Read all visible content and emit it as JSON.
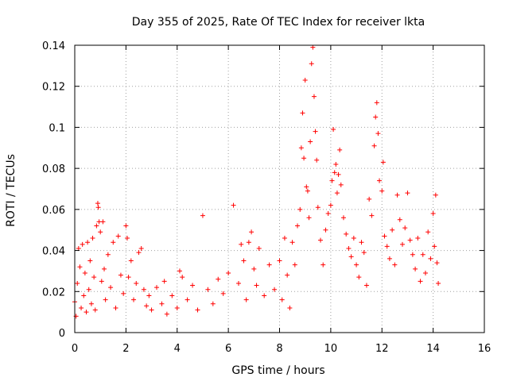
{
  "chart_data": {
    "type": "scatter",
    "title": "Day 355 of 2025, Rate Of TEC Index for receiver lkta",
    "xlabel": "GPS time / hours",
    "ylabel": "ROTI / TECUs",
    "xlim": [
      0,
      16
    ],
    "ylim": [
      0,
      0.14
    ],
    "xticks": [
      0,
      2,
      4,
      6,
      8,
      10,
      12,
      14,
      16
    ],
    "yticks": [
      0,
      0.02,
      0.04,
      0.06,
      0.08,
      0.1,
      0.12,
      0.14
    ],
    "ytick_labels": [
      "0",
      "0.02",
      "0.04",
      "0.06",
      "0.08",
      "0.1",
      "0.12",
      "0.14"
    ],
    "grid": true,
    "marker": "+",
    "marker_color": "#ff0000",
    "series": [
      {
        "name": "ROTI",
        "points": [
          [
            0.0,
            0.015
          ],
          [
            0.05,
            0.008
          ],
          [
            0.1,
            0.024
          ],
          [
            0.15,
            0.041
          ],
          [
            0.2,
            0.032
          ],
          [
            0.25,
            0.012
          ],
          [
            0.3,
            0.043
          ],
          [
            0.35,
            0.018
          ],
          [
            0.4,
            0.029
          ],
          [
            0.45,
            0.01
          ],
          [
            0.5,
            0.044
          ],
          [
            0.55,
            0.021
          ],
          [
            0.6,
            0.035
          ],
          [
            0.65,
            0.014
          ],
          [
            0.7,
            0.046
          ],
          [
            0.75,
            0.027
          ],
          [
            0.8,
            0.011
          ],
          [
            0.85,
            0.052
          ],
          [
            0.9,
            0.063
          ],
          [
            0.92,
            0.061
          ],
          [
            0.95,
            0.054
          ],
          [
            1.0,
            0.049
          ],
          [
            1.05,
            0.025
          ],
          [
            1.1,
            0.054
          ],
          [
            1.15,
            0.031
          ],
          [
            1.2,
            0.016
          ],
          [
            1.3,
            0.038
          ],
          [
            1.4,
            0.022
          ],
          [
            1.5,
            0.044
          ],
          [
            1.6,
            0.012
          ],
          [
            1.7,
            0.047
          ],
          [
            1.8,
            0.028
          ],
          [
            1.9,
            0.019
          ],
          [
            2.0,
            0.052
          ],
          [
            2.05,
            0.046
          ],
          [
            2.1,
            0.027
          ],
          [
            2.2,
            0.035
          ],
          [
            2.3,
            0.016
          ],
          [
            2.4,
            0.024
          ],
          [
            2.5,
            0.039
          ],
          [
            2.6,
            0.041
          ],
          [
            2.7,
            0.021
          ],
          [
            2.8,
            0.013
          ],
          [
            2.9,
            0.018
          ],
          [
            3.0,
            0.011
          ],
          [
            3.2,
            0.022
          ],
          [
            3.4,
            0.014
          ],
          [
            3.5,
            0.025
          ],
          [
            3.6,
            0.009
          ],
          [
            3.8,
            0.018
          ],
          [
            4.0,
            0.012
          ],
          [
            4.1,
            0.03
          ],
          [
            4.2,
            0.027
          ],
          [
            4.4,
            0.016
          ],
          [
            4.6,
            0.023
          ],
          [
            4.8,
            0.011
          ],
          [
            5.0,
            0.057
          ],
          [
            5.2,
            0.021
          ],
          [
            5.4,
            0.014
          ],
          [
            5.6,
            0.026
          ],
          [
            5.8,
            0.019
          ],
          [
            6.0,
            0.029
          ],
          [
            6.2,
            0.062
          ],
          [
            6.4,
            0.024
          ],
          [
            6.5,
            0.043
          ],
          [
            6.6,
            0.035
          ],
          [
            6.7,
            0.016
          ],
          [
            6.8,
            0.044
          ],
          [
            6.9,
            0.049
          ],
          [
            7.0,
            0.031
          ],
          [
            7.1,
            0.023
          ],
          [
            7.2,
            0.041
          ],
          [
            7.4,
            0.018
          ],
          [
            7.6,
            0.033
          ],
          [
            7.8,
            0.021
          ],
          [
            8.0,
            0.035
          ],
          [
            8.1,
            0.016
          ],
          [
            8.2,
            0.046
          ],
          [
            8.3,
            0.028
          ],
          [
            8.4,
            0.012
          ],
          [
            8.5,
            0.044
          ],
          [
            8.6,
            0.033
          ],
          [
            8.7,
            0.052
          ],
          [
            8.8,
            0.06
          ],
          [
            8.85,
            0.09
          ],
          [
            8.9,
            0.107
          ],
          [
            8.95,
            0.085
          ],
          [
            9.0,
            0.123
          ],
          [
            9.05,
            0.071
          ],
          [
            9.1,
            0.069
          ],
          [
            9.15,
            0.056
          ],
          [
            9.2,
            0.093
          ],
          [
            9.25,
            0.131
          ],
          [
            9.3,
            0.139
          ],
          [
            9.35,
            0.115
          ],
          [
            9.4,
            0.098
          ],
          [
            9.45,
            0.084
          ],
          [
            9.5,
            0.061
          ],
          [
            9.6,
            0.045
          ],
          [
            9.7,
            0.033
          ],
          [
            9.8,
            0.05
          ],
          [
            9.9,
            0.058
          ],
          [
            10.0,
            0.062
          ],
          [
            10.05,
            0.074
          ],
          [
            10.1,
            0.099
          ],
          [
            10.15,
            0.078
          ],
          [
            10.2,
            0.082
          ],
          [
            10.25,
            0.068
          ],
          [
            10.3,
            0.077
          ],
          [
            10.35,
            0.089
          ],
          [
            10.4,
            0.072
          ],
          [
            10.5,
            0.056
          ],
          [
            10.6,
            0.048
          ],
          [
            10.7,
            0.041
          ],
          [
            10.8,
            0.037
          ],
          [
            10.9,
            0.046
          ],
          [
            11.0,
            0.033
          ],
          [
            11.1,
            0.027
          ],
          [
            11.2,
            0.044
          ],
          [
            11.3,
            0.039
          ],
          [
            11.4,
            0.023
          ],
          [
            11.5,
            0.065
          ],
          [
            11.6,
            0.057
          ],
          [
            11.7,
            0.091
          ],
          [
            11.75,
            0.105
          ],
          [
            11.8,
            0.112
          ],
          [
            11.85,
            0.097
          ],
          [
            11.9,
            0.074
          ],
          [
            12.0,
            0.069
          ],
          [
            12.05,
            0.083
          ],
          [
            12.1,
            0.047
          ],
          [
            12.2,
            0.042
          ],
          [
            12.3,
            0.036
          ],
          [
            12.4,
            0.05
          ],
          [
            12.5,
            0.033
          ],
          [
            12.6,
            0.067
          ],
          [
            12.7,
            0.055
          ],
          [
            12.8,
            0.043
          ],
          [
            12.9,
            0.051
          ],
          [
            13.0,
            0.068
          ],
          [
            13.1,
            0.045
          ],
          [
            13.2,
            0.038
          ],
          [
            13.3,
            0.031
          ],
          [
            13.4,
            0.046
          ],
          [
            13.5,
            0.025
          ],
          [
            13.6,
            0.038
          ],
          [
            13.7,
            0.029
          ],
          [
            13.8,
            0.049
          ],
          [
            13.9,
            0.036
          ],
          [
            14.0,
            0.058
          ],
          [
            14.05,
            0.042
          ],
          [
            14.1,
            0.067
          ],
          [
            14.15,
            0.034
          ],
          [
            14.2,
            0.024
          ]
        ]
      }
    ]
  }
}
